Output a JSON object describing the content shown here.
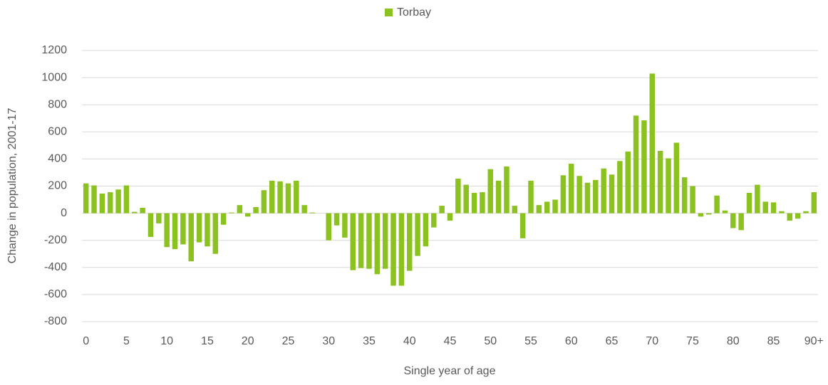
{
  "chart_data": {
    "type": "bar",
    "y_label": "Change in population, 2001-17",
    "x_label": "Single year of age",
    "categories": [
      "0",
      null,
      null,
      null,
      null,
      "5",
      null,
      null,
      null,
      null,
      "10",
      null,
      null,
      null,
      null,
      "15",
      null,
      null,
      null,
      null,
      "20",
      null,
      null,
      null,
      null,
      "25",
      null,
      null,
      null,
      null,
      "30",
      null,
      null,
      null,
      null,
      "35",
      null,
      null,
      null,
      null,
      "40",
      null,
      null,
      null,
      null,
      "45",
      null,
      null,
      null,
      null,
      "50",
      null,
      null,
      null,
      null,
      "55",
      null,
      null,
      null,
      null,
      "60",
      null,
      null,
      null,
      null,
      "65",
      null,
      null,
      null,
      null,
      "70",
      null,
      null,
      null,
      null,
      "75",
      null,
      null,
      null,
      null,
      "80",
      null,
      null,
      null,
      null,
      "85",
      null,
      null,
      null,
      null,
      "90+"
    ],
    "series": [
      {
        "name": "Torbay",
        "color": "#8cc21f",
        "values": [
          220,
          205,
          145,
          155,
          175,
          205,
          10,
          40,
          -175,
          -75,
          -250,
          -265,
          -230,
          -355,
          -215,
          -245,
          -300,
          -85,
          5,
          60,
          -25,
          45,
          170,
          240,
          235,
          220,
          240,
          60,
          5,
          0,
          -200,
          -90,
          -180,
          -420,
          -405,
          -410,
          -450,
          -410,
          -535,
          -535,
          -425,
          -315,
          -245,
          -105,
          55,
          -55,
          255,
          210,
          150,
          155,
          325,
          240,
          345,
          55,
          -185,
          240,
          60,
          85,
          100,
          280,
          365,
          275,
          225,
          245,
          330,
          285,
          385,
          455,
          720,
          685,
          1030,
          460,
          405,
          520,
          265,
          200,
          -25,
          -10,
          130,
          20,
          -110,
          -125,
          150,
          210,
          85,
          80,
          15,
          -55,
          -40,
          15,
          155
        ]
      }
    ],
    "ylim": [
      -800,
      1200
    ],
    "yticks": [
      -800,
      -600,
      -400,
      -200,
      0,
      200,
      400,
      600,
      800,
      1000,
      1200
    ],
    "grid": true,
    "legend": "top"
  }
}
